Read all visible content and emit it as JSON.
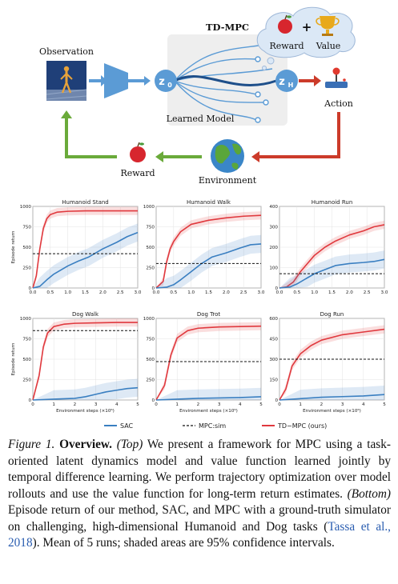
{
  "diagram": {
    "observation_label": "Observation",
    "tdmpc_label": "TD-MPC",
    "z0_label": "z",
    "z0_sub": "0",
    "zh_label": "z",
    "zh_sub": "H",
    "learned_model_label": "Learned Model",
    "reward_top_label": "Reward",
    "plus_sign": "+",
    "value_label": "Value",
    "action_label": "Action",
    "environment_label": "Environment",
    "reward_bottom_label": "Reward",
    "icons": [
      "humanoid-image",
      "encoder-icon",
      "apple-icon",
      "trophy-icon",
      "joystick-icon",
      "globe-icon"
    ],
    "colors": {
      "blue": "#5b9bd5",
      "green": "#6aaa3a",
      "red": "#cc3b2a",
      "panel": "#eeeeee"
    }
  },
  "legend": [
    {
      "label": "SAC",
      "style": "solid",
      "color": "#3a7fc1"
    },
    {
      "label": "MPC:sim",
      "style": "dashed",
      "color": "#111111"
    },
    {
      "label": "TD−MPC (ours)",
      "style": "solid",
      "color": "#e0393e"
    }
  ],
  "chart_data": [
    {
      "type": "line",
      "title": "Humanoid Stand",
      "xlabel": "",
      "ylabel": "Episode return",
      "xlim": [
        0,
        3
      ],
      "ylim": [
        0,
        1000
      ],
      "xticks": [
        "0.0",
        "0.5",
        "1.0",
        "1.5",
        "2.0",
        "2.5",
        "3.0"
      ],
      "yticks": [
        "0",
        "250",
        "500",
        "750",
        "1000"
      ],
      "mpc_sim": 420,
      "series": [
        {
          "name": "TD−MPC (ours)",
          "x": [
            0,
            0.1,
            0.2,
            0.3,
            0.4,
            0.5,
            0.7,
            1.0,
            1.5,
            2.0,
            2.5,
            3.0
          ],
          "y": [
            0,
            150,
            480,
            730,
            850,
            900,
            930,
            940,
            945,
            945,
            945,
            945
          ]
        },
        {
          "name": "SAC",
          "x": [
            0,
            0.2,
            0.4,
            0.6,
            0.8,
            1.0,
            1.3,
            1.6,
            2.0,
            2.4,
            2.7,
            3.0
          ],
          "y": [
            0,
            20,
            100,
            170,
            220,
            270,
            330,
            380,
            480,
            560,
            630,
            680
          ]
        }
      ]
    },
    {
      "type": "line",
      "title": "Humanoid Walk",
      "xlabel": "",
      "ylabel": "",
      "xlim": [
        0,
        3
      ],
      "ylim": [
        0,
        1000
      ],
      "xticks": [
        "0.0",
        "0.5",
        "1.0",
        "1.5",
        "2.0",
        "2.5",
        "3.0"
      ],
      "yticks": [
        "0",
        "250",
        "500",
        "750",
        "1000"
      ],
      "mpc_sim": 300,
      "series": [
        {
          "name": "TD−MPC (ours)",
          "x": [
            0,
            0.2,
            0.3,
            0.4,
            0.5,
            0.7,
            1.0,
            1.5,
            2.0,
            2.5,
            3.0
          ],
          "y": [
            0,
            80,
            320,
            480,
            570,
            690,
            780,
            830,
            860,
            880,
            890
          ]
        },
        {
          "name": "SAC",
          "x": [
            0,
            0.3,
            0.5,
            0.7,
            1.0,
            1.3,
            1.6,
            2.0,
            2.4,
            2.7,
            3.0
          ],
          "y": [
            0,
            10,
            40,
            100,
            200,
            300,
            380,
            430,
            490,
            530,
            540
          ]
        }
      ]
    },
    {
      "type": "line",
      "title": "Humanoid Run",
      "xlabel": "",
      "ylabel": "",
      "xlim": [
        0,
        3
      ],
      "ylim": [
        0,
        400
      ],
      "xticks": [
        "0.0",
        "0.5",
        "1.0",
        "1.5",
        "2.0",
        "2.5",
        "3.0"
      ],
      "yticks": [
        "0",
        "100",
        "200",
        "300",
        "400"
      ],
      "mpc_sim": 70,
      "series": [
        {
          "name": "TD−MPC (ours)",
          "x": [
            0,
            0.2,
            0.4,
            0.6,
            0.8,
            1.0,
            1.3,
            1.6,
            2.0,
            2.4,
            2.7,
            3.0
          ],
          "y": [
            0,
            5,
            30,
            80,
            120,
            160,
            200,
            230,
            260,
            280,
            300,
            310
          ]
        },
        {
          "name": "SAC",
          "x": [
            0,
            0.3,
            0.5,
            0.8,
            1.0,
            1.3,
            1.6,
            2.0,
            2.4,
            2.7,
            3.0
          ],
          "y": [
            0,
            5,
            20,
            50,
            70,
            90,
            110,
            120,
            125,
            130,
            140
          ]
        }
      ]
    },
    {
      "type": "line",
      "title": "Dog Walk",
      "xlabel": "Environment steps (×10⁶)",
      "ylabel": "Episode return",
      "xlim": [
        0,
        5
      ],
      "ylim": [
        0,
        1000
      ],
      "xticks": [
        "0",
        "1",
        "2",
        "3",
        "4",
        "5"
      ],
      "yticks": [
        "0",
        "250",
        "500",
        "750",
        "1000"
      ],
      "mpc_sim": 850,
      "series": [
        {
          "name": "TD−MPC (ours)",
          "x": [
            0,
            0.3,
            0.5,
            0.7,
            1.0,
            1.5,
            2.0,
            3.0,
            4.0,
            5.0
          ],
          "y": [
            0,
            300,
            650,
            820,
            900,
            930,
            940,
            945,
            950,
            950
          ]
        },
        {
          "name": "SAC",
          "x": [
            0,
            1,
            2,
            2.5,
            3,
            3.5,
            4,
            4.5,
            5
          ],
          "y": [
            0,
            10,
            20,
            40,
            70,
            100,
            120,
            140,
            150
          ]
        }
      ]
    },
    {
      "type": "line",
      "title": "Dog Trot",
      "xlabel": "Environment steps (×10⁶)",
      "ylabel": "",
      "xlim": [
        0,
        5
      ],
      "ylim": [
        0,
        1000
      ],
      "xticks": [
        "0",
        "1",
        "2",
        "3",
        "4",
        "5"
      ],
      "yticks": [
        "0",
        "250",
        "500",
        "750",
        "1000"
      ],
      "mpc_sim": 470,
      "series": [
        {
          "name": "TD−MPC (ours)",
          "x": [
            0,
            0.4,
            0.7,
            1.0,
            1.5,
            2.0,
            3.0,
            4.0,
            5.0
          ],
          "y": [
            0,
            180,
            550,
            760,
            850,
            880,
            895,
            900,
            905
          ]
        },
        {
          "name": "SAC",
          "x": [
            0,
            1,
            2,
            3,
            4,
            5
          ],
          "y": [
            0,
            10,
            20,
            25,
            30,
            40
          ]
        }
      ]
    },
    {
      "type": "line",
      "title": "Dog Run",
      "xlabel": "Environment steps (×10⁶)",
      "ylabel": "",
      "xlim": [
        0,
        5
      ],
      "ylim": [
        0,
        600
      ],
      "xticks": [
        "0",
        "1",
        "2",
        "3",
        "4",
        "5"
      ],
      "yticks": [
        "0",
        "150",
        "300",
        "450",
        "600"
      ],
      "mpc_sim": 300,
      "series": [
        {
          "name": "TD−MPC (ours)",
          "x": [
            0,
            0.3,
            0.6,
            1.0,
            1.5,
            2.0,
            3.0,
            4.0,
            5.0
          ],
          "y": [
            0,
            80,
            250,
            340,
            400,
            440,
            480,
            500,
            520
          ]
        },
        {
          "name": "SAC",
          "x": [
            0,
            1,
            2,
            3,
            4,
            5
          ],
          "y": [
            0,
            10,
            20,
            25,
            30,
            40
          ]
        }
      ]
    }
  ],
  "caption": {
    "label": "Figure 1.",
    "bold": "Overview.",
    "top_tag": "(Top)",
    "text1": "We present a framework for MPC using a task-oriented latent dynamics model and value function learned jointly by temporal difference learning. We perform trajectory optimization over model rollouts and use the value function for long-term return estimates.",
    "bottom_tag": "(Bottom)",
    "text2": "Episode return of our method, SAC, and MPC with a ground-truth simulator on challenging, high-dimensional Humanoid and Dog tasks (",
    "cite": "Tassa et al., 2018",
    "text3": "). Mean of 5 runs; shaded areas are 95% confidence intervals."
  }
}
